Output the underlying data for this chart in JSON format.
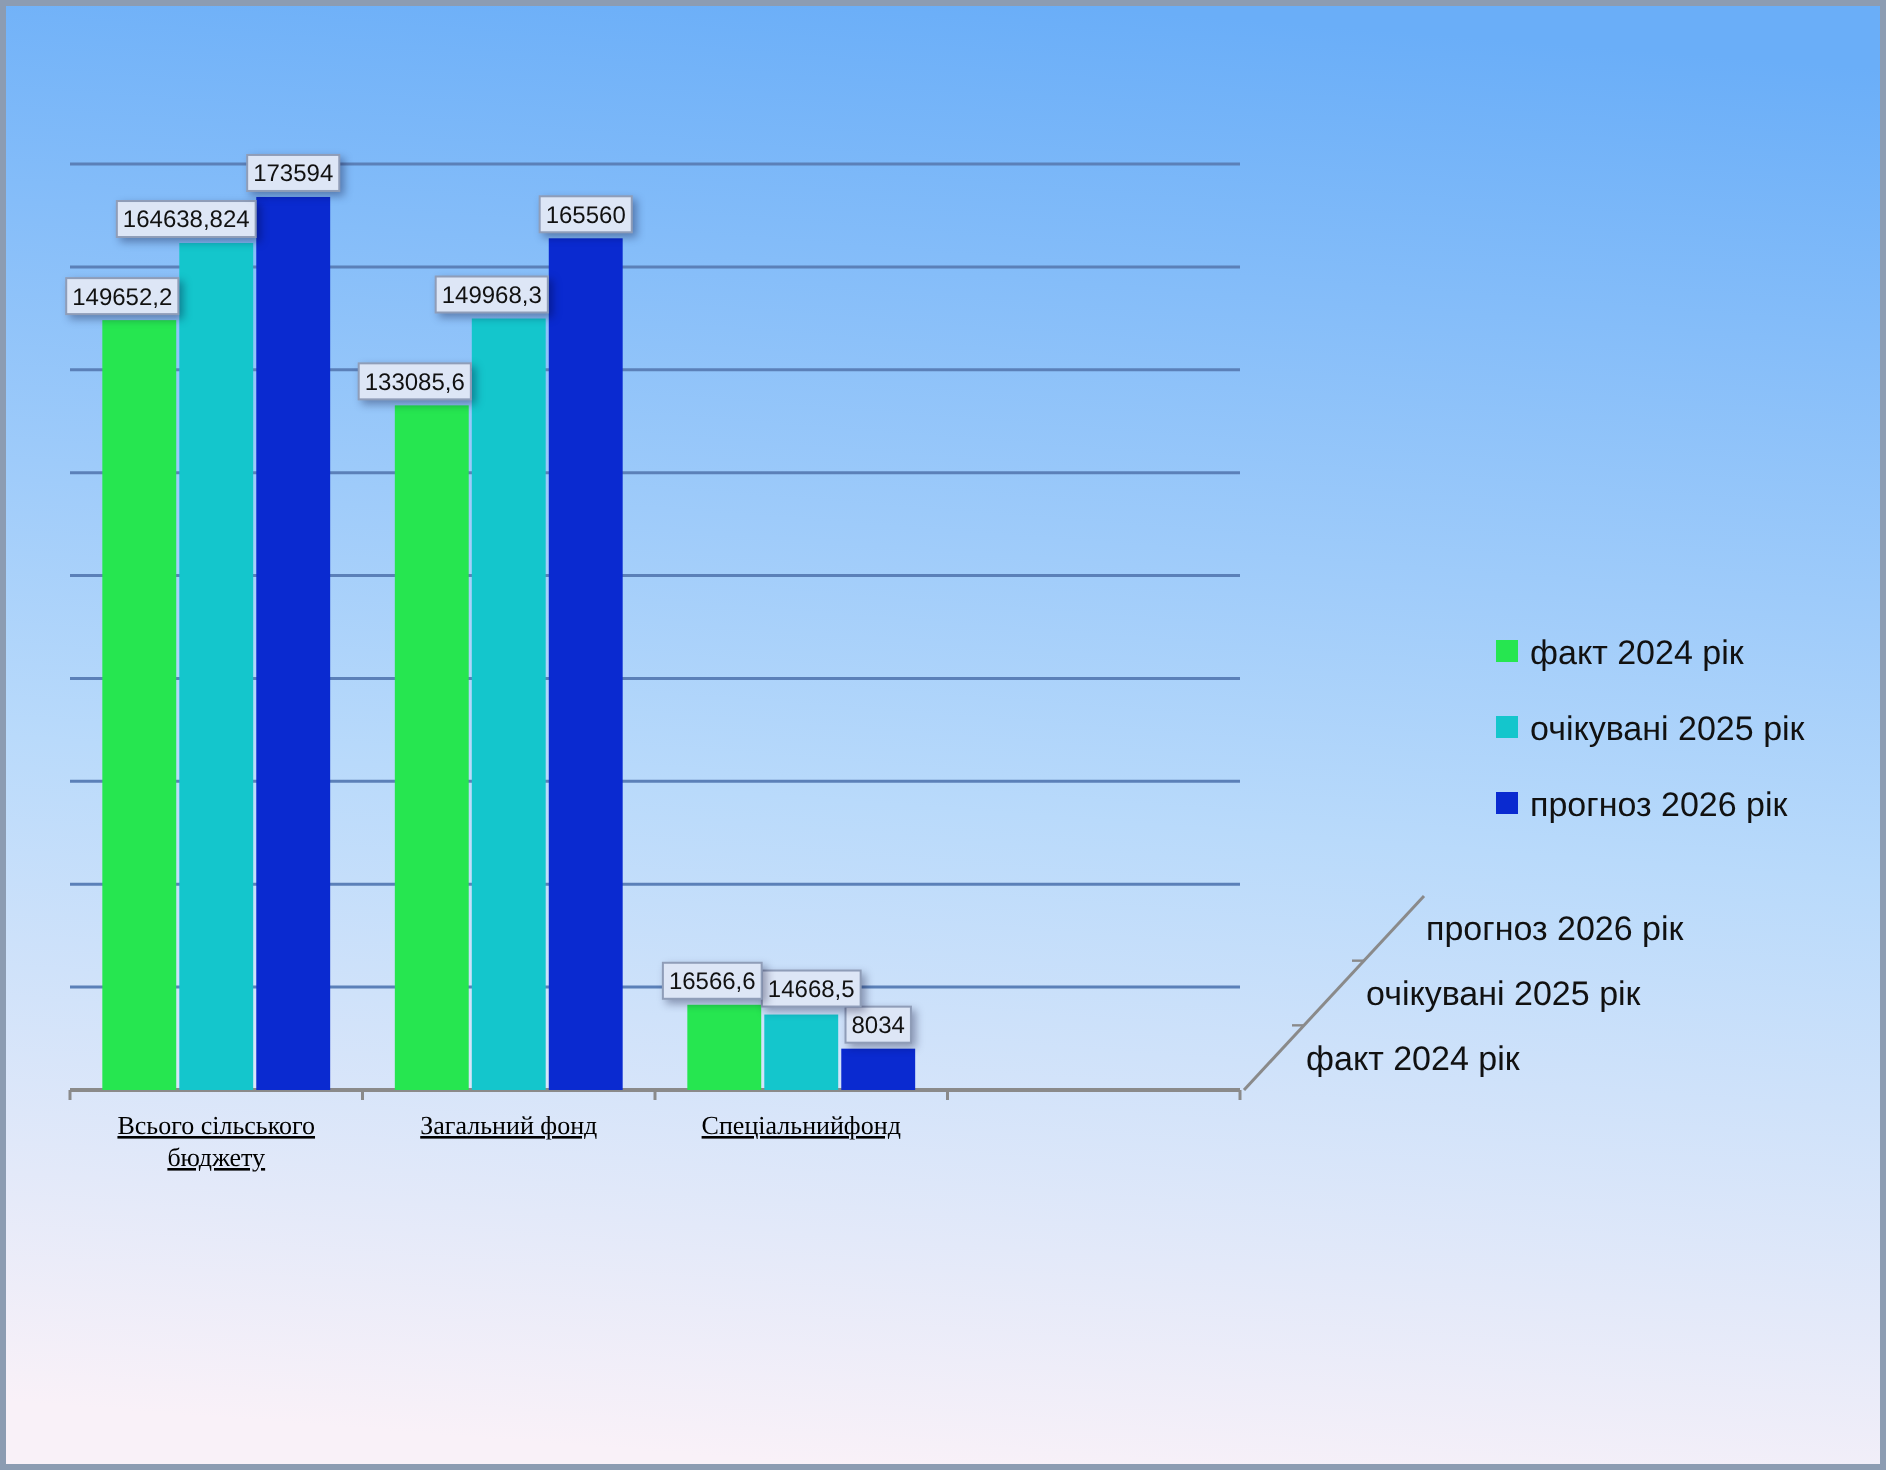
{
  "chart_data": {
    "type": "bar",
    "categories": [
      "Всього сільського бюджету",
      "Загальний фонд",
      "Спеціальнийфонд",
      null
    ],
    "series": [
      {
        "name": "факт 2024 рік",
        "color": "#26e650",
        "values": [
          149652.2,
          133085.6,
          16566.6,
          null
        ],
        "value_labels": [
          "149652,2",
          "133085,6",
          "16566,6",
          null
        ]
      },
      {
        "name": "очікувані 2025 рік",
        "color": "#14c6cc",
        "values": [
          164638.824,
          149968.3,
          14668.5,
          null
        ],
        "value_labels": [
          "164638,824",
          "149968,3",
          "14668,5",
          null
        ]
      },
      {
        "name": "прогноз 2026 рік",
        "color": "#0a2ad0",
        "values": [
          173594,
          165560,
          8034,
          null
        ],
        "value_labels": [
          "173594",
          "165560",
          "8034",
          null
        ]
      }
    ],
    "ylim": [
      0,
      180000
    ],
    "yticks": [
      {
        "value": 0,
        "label": null
      },
      {
        "value": 20000,
        "label": null
      },
      {
        "value": 40000,
        "label": null
      },
      {
        "value": 60000,
        "label": null
      },
      {
        "value": 80000,
        "label": null
      },
      {
        "value": 100000,
        "label": null
      },
      {
        "value": 120000,
        "label": null
      },
      {
        "value": 140000,
        "label": null
      },
      {
        "value": 160000,
        "label": null
      },
      {
        "value": 180000,
        "label": null
      }
    ],
    "grid": "y",
    "legend": "right",
    "tick_labels": "x"
  }
}
